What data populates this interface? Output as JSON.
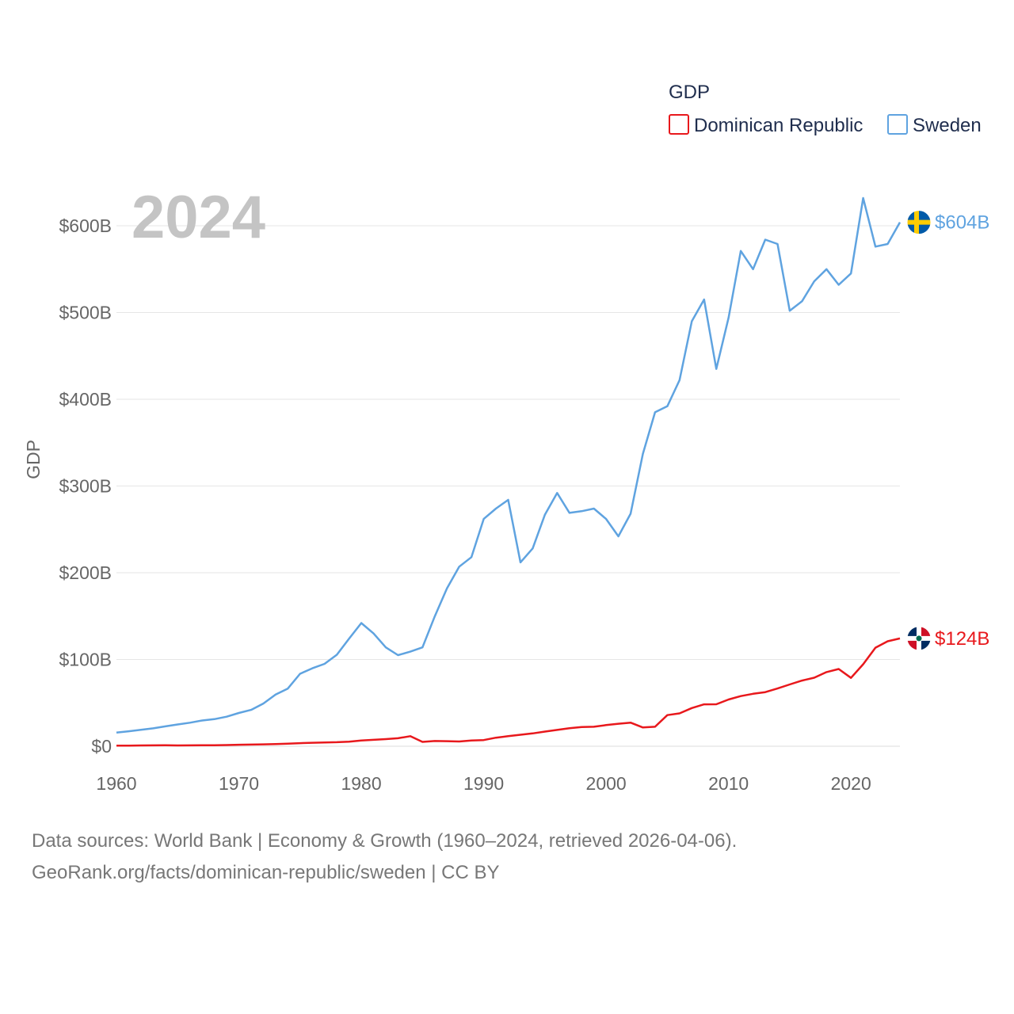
{
  "chart_data": {
    "type": "line",
    "title": "GDP",
    "year_label": "2024",
    "ylabel": "GDP",
    "xlabel": "",
    "ylim": [
      0,
      600
    ],
    "xlim": [
      1960,
      2024
    ],
    "y_ticks": [
      0,
      100,
      200,
      300,
      400,
      500,
      600
    ],
    "y_tick_labels": [
      "$0",
      "$100B",
      "$200B",
      "$300B",
      "$400B",
      "$500B",
      "$600B"
    ],
    "x_ticks": [
      1960,
      1970,
      1980,
      1990,
      2000,
      2010,
      2020
    ],
    "x_tick_labels": [
      "1960",
      "1970",
      "1980",
      "1990",
      "2000",
      "2010",
      "2020"
    ],
    "grid": true,
    "legend_position": "top-right",
    "x": [
      1960,
      1961,
      1962,
      1963,
      1964,
      1965,
      1966,
      1967,
      1968,
      1969,
      1970,
      1971,
      1972,
      1973,
      1974,
      1975,
      1976,
      1977,
      1978,
      1979,
      1980,
      1981,
      1982,
      1983,
      1984,
      1985,
      1986,
      1987,
      1988,
      1989,
      1990,
      1991,
      1992,
      1993,
      1994,
      1995,
      1996,
      1997,
      1998,
      1999,
      2000,
      2001,
      2002,
      2003,
      2004,
      2005,
      2006,
      2007,
      2008,
      2009,
      2010,
      2011,
      2012,
      2013,
      2014,
      2015,
      2016,
      2017,
      2018,
      2019,
      2020,
      2021,
      2022,
      2023,
      2024
    ],
    "series": [
      {
        "name": "Dominican Republic",
        "color": "#e8181c",
        "end_label": "$124B",
        "flag": "dominican-republic",
        "values": [
          0.7,
          0.7,
          0.9,
          1.0,
          1.1,
          0.9,
          1.0,
          1.1,
          1.2,
          1.4,
          1.7,
          1.9,
          2.2,
          2.5,
          3.0,
          3.6,
          4.0,
          4.4,
          4.7,
          5.3,
          6.7,
          7.4,
          8.2,
          9.2,
          11.6,
          5.0,
          6.0,
          5.8,
          5.5,
          6.6,
          7.1,
          9.9,
          11.6,
          13.2,
          14.8,
          16.9,
          18.8,
          20.8,
          22.2,
          22.5,
          24.4,
          25.9,
          27.2,
          21.6,
          22.5,
          35.9,
          37.9,
          44.0,
          48.3,
          48.4,
          53.9,
          57.8,
          60.5,
          62.4,
          66.6,
          71.2,
          75.7,
          79.0,
          85.5,
          89.0,
          78.8,
          94.5,
          113.6,
          121.0,
          124.3
        ]
      },
      {
        "name": "Sweden",
        "color": "#5fa3e0",
        "end_label": "$604B",
        "flag": "sweden",
        "values": [
          15.8,
          17.3,
          18.9,
          20.6,
          22.9,
          25.1,
          27.1,
          29.7,
          31.2,
          34.1,
          38.4,
          41.9,
          49.2,
          59.5,
          66.5,
          83.6,
          89.9,
          95.0,
          105.5,
          124.0,
          142.0,
          130.0,
          114.0,
          105.0,
          109.0,
          114.0,
          149.7,
          182.0,
          207.0,
          218.0,
          262.0,
          274.0,
          284.0,
          212.0,
          228.0,
          267.0,
          292.0,
          269.0,
          271.0,
          274.0,
          262.0,
          242.0,
          268.0,
          337.0,
          385.0,
          392.0,
          422.0,
          490.0,
          515.0,
          435.0,
          494.0,
          571.0,
          550.0,
          584.0,
          579.0,
          502.0,
          513.0,
          536.0,
          550.0,
          532.0,
          545.0,
          632.0,
          576.0,
          579.0,
          604.0
        ]
      }
    ]
  },
  "footer": {
    "line1": "Data sources: World Bank | Economy & Growth (1960–2024, retrieved 2026-04-06).",
    "line2": "GeoRank.org/facts/dominican-republic/sweden | CC BY"
  }
}
